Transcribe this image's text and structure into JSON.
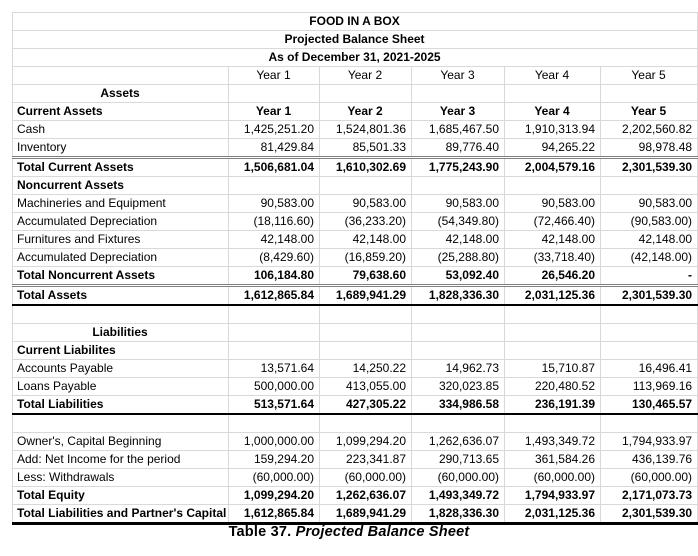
{
  "sheet": {
    "titles": [
      "FOOD IN A BOX",
      "Projected Balance Sheet",
      "As of December 31, 2021-2025"
    ],
    "rows": [
      {
        "label": "",
        "values": [
          "Year 1",
          "Year 2",
          "Year 3",
          "Year 4",
          "Year 5"
        ],
        "vc": true
      },
      {
        "label": "Assets",
        "lb": true,
        "lc": true
      },
      {
        "label": "Current Assets",
        "lb": true,
        "values": [
          "Year 1",
          "Year 2",
          "Year 3",
          "Year 4",
          "Year 5"
        ],
        "vb": true,
        "vc": true,
        "bt": "black"
      },
      {
        "label": "Cash",
        "values": [
          "1,425,251.20",
          "1,524,801.36",
          "1,685,467.50",
          "1,910,313.94",
          "2,202,560.82"
        ]
      },
      {
        "label": "Inventory",
        "values": [
          "81,429.84",
          "85,501.33",
          "89,776.40",
          "94,265.22",
          "98,978.48"
        ]
      },
      {
        "label": "Total Current Assets",
        "lb": true,
        "vb": true,
        "values": [
          "1,506,681.04",
          "1,610,302.69",
          "1,775,243.90",
          "2,004,579.16",
          "2,301,539.30"
        ],
        "bt": "double"
      },
      {
        "label": "Noncurrent Assets",
        "lb": true
      },
      {
        "label": "Machineries and Equipment",
        "values": [
          "90,583.00",
          "90,583.00",
          "90,583.00",
          "90,583.00",
          "90,583.00"
        ]
      },
      {
        "label": "Accumulated Depreciation",
        "values": [
          "(18,116.60)",
          "(36,233.20)",
          "(54,349.80)",
          "(72,466.40)",
          "(90,583.00)"
        ]
      },
      {
        "label": "Furnitures and Fixtures",
        "values": [
          "42,148.00",
          "42,148.00",
          "42,148.00",
          "42,148.00",
          "42,148.00"
        ]
      },
      {
        "label": "Accumulated Depreciation",
        "values": [
          "(8,429.60)",
          "(16,859.20)",
          "(25,288.80)",
          "(33,718.40)",
          "(42,148.00)"
        ]
      },
      {
        "label": "Total Noncurrent Assets",
        "lb": true,
        "vb": true,
        "values": [
          "106,184.80",
          "79,638.60",
          "53,092.40",
          "26,546.20",
          "-"
        ],
        "bt": "black"
      },
      {
        "label": "Total Assets",
        "lb": true,
        "vb": true,
        "values": [
          "1,612,865.84",
          "1,689,941.29",
          "1,828,336.30",
          "2,031,125.36",
          "2,301,539.30"
        ],
        "bt": "double",
        "bb": "thick"
      },
      {
        "label": ""
      },
      {
        "label": "Liabilities",
        "lb": true,
        "lc": true
      },
      {
        "label": "Current Liabilites",
        "lb": true
      },
      {
        "label": "Accounts Payable",
        "values": [
          "13,571.64",
          "14,250.22",
          "14,962.73",
          "15,710.87",
          "16,496.41"
        ]
      },
      {
        "label": "Loans Payable",
        "values": [
          "500,000.00",
          "413,055.00",
          "320,023.85",
          "220,480.52",
          "113,969.16"
        ]
      },
      {
        "label": "Total Liabilities",
        "lb": true,
        "vb": true,
        "values": [
          "513,571.64",
          "427,305.22",
          "334,986.58",
          "236,191.39",
          "130,465.57"
        ],
        "bt": "black",
        "bb": "thick"
      },
      {
        "label": ""
      },
      {
        "label": "Owner's, Capital Beginning",
        "values": [
          "1,000,000.00",
          "1,099,294.20",
          "1,262,636.07",
          "1,493,349.72",
          "1,794,933.97"
        ]
      },
      {
        "label": "Add: Net Income for the period",
        "values": [
          "159,294.20",
          "223,341.87",
          "290,713.65",
          "361,584.26",
          "436,139.76"
        ]
      },
      {
        "label": "Less: Withdrawals",
        "values": [
          "(60,000.00)",
          "(60,000.00)",
          "(60,000.00)",
          "(60,000.00)",
          "(60,000.00)"
        ]
      },
      {
        "label": "Total Equity",
        "lb": true,
        "vb": true,
        "values": [
          "1,099,294.20",
          "1,262,636.07",
          "1,493,349.72",
          "1,794,933.97",
          "2,171,073.73"
        ],
        "bt": "black"
      },
      {
        "label": "Total Liabilities and Partner's Capital",
        "lb": true,
        "vb": true,
        "values": [
          "1,612,865.84",
          "1,689,941.29",
          "1,828,336.30",
          "2,031,125.36",
          "2,301,539.30"
        ],
        "bt": "black",
        "bb": "xthick"
      }
    ]
  },
  "caption": {
    "prefix": "Table 37. ",
    "title": "Projected Balance Sheet"
  }
}
